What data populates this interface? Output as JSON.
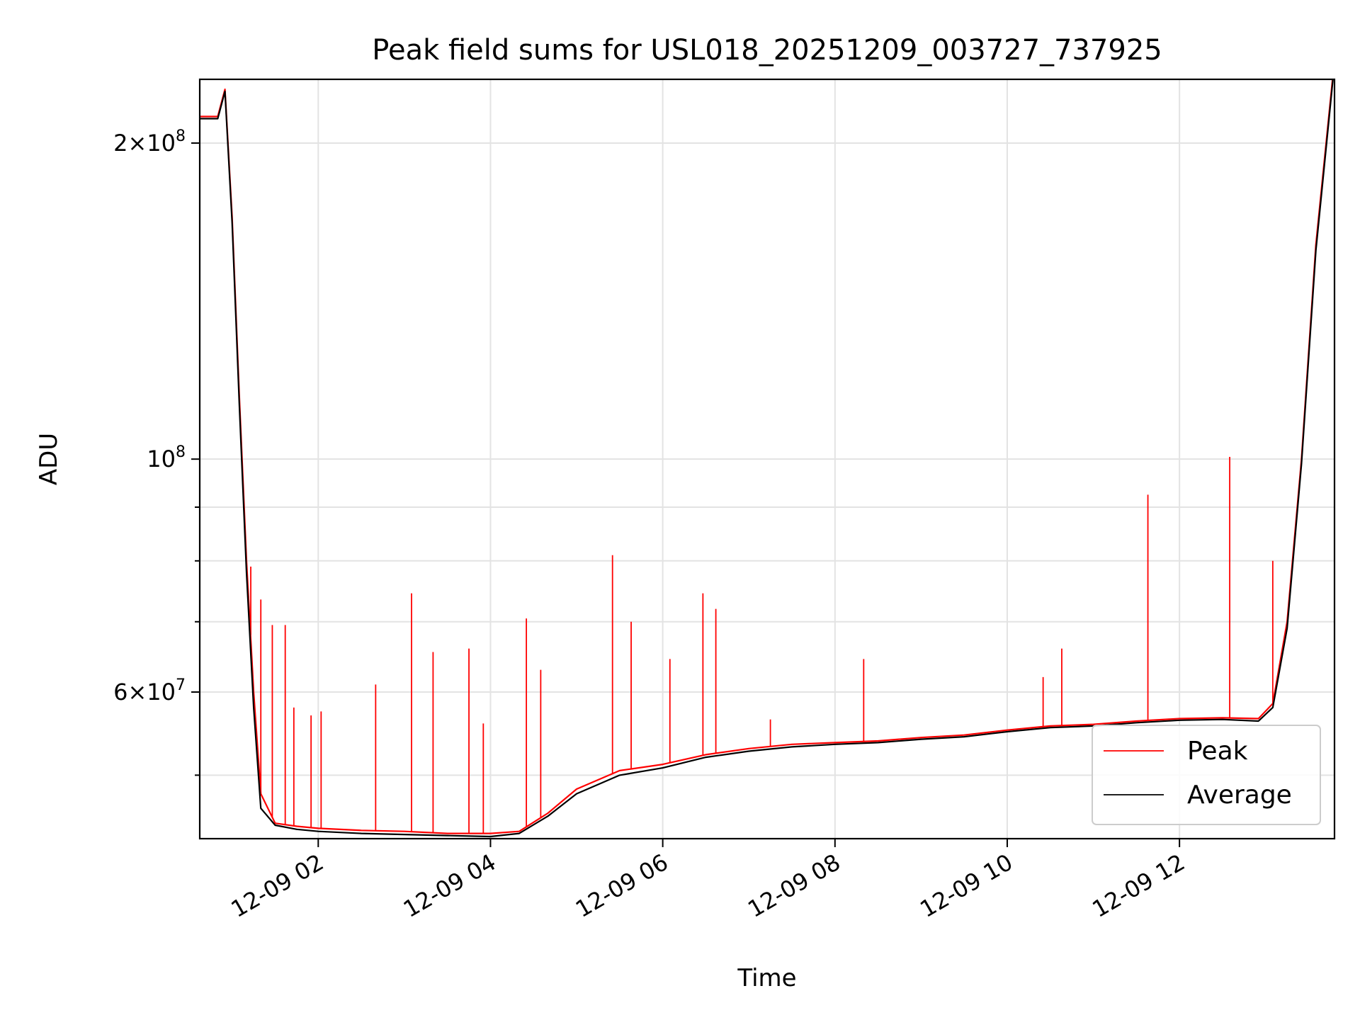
{
  "chart_data": {
    "type": "line",
    "title": "Peak field sums for USL018_20251209_003727_737925",
    "xlabel": "Time",
    "ylabel": "ADU",
    "yscale": "log",
    "grid": true,
    "legend_position": "lower-right",
    "xlim": [
      "2025-12-09T00:37:27",
      "2025-12-09T13:48:00"
    ],
    "ylim": [
      43500000,
      230000000
    ],
    "x_ticks": [
      {
        "t": "2025-12-09T02:00:00",
        "label": "12-09 02"
      },
      {
        "t": "2025-12-09T04:00:00",
        "label": "12-09 04"
      },
      {
        "t": "2025-12-09T06:00:00",
        "label": "12-09 06"
      },
      {
        "t": "2025-12-09T08:00:00",
        "label": "12-09 08"
      },
      {
        "t": "2025-12-09T10:00:00",
        "label": "12-09 10"
      },
      {
        "t": "2025-12-09T12:00:00",
        "label": "12-09 12"
      }
    ],
    "y_major_ticks": [
      {
        "value": 60000000,
        "base": "6",
        "exp": "7"
      },
      {
        "value": 100000000,
        "base": "",
        "exp": "8"
      },
      {
        "value": 200000000,
        "base": "2",
        "exp": "8"
      }
    ],
    "y_minor_ticks": [
      50000000,
      70000000,
      80000000,
      90000000
    ],
    "series": [
      {
        "name": "Peak",
        "color": "#ff0000",
        "x": [
          "2025-12-09T00:37:27",
          "2025-12-09T00:50:00",
          "2025-12-09T00:55:00",
          "2025-12-09T01:00:00",
          "2025-12-09T01:05:00",
          "2025-12-09T01:10:00",
          "2025-12-09T01:15:00",
          "2025-12-09T01:20:00",
          "2025-12-09T01:30:00",
          "2025-12-09T01:45:00",
          "2025-12-09T02:00:00",
          "2025-12-09T02:30:00",
          "2025-12-09T03:00:00",
          "2025-12-09T03:30:00",
          "2025-12-09T04:00:00",
          "2025-12-09T04:20:00",
          "2025-12-09T04:40:00",
          "2025-12-09T05:00:00",
          "2025-12-09T05:30:00",
          "2025-12-09T06:00:00",
          "2025-12-09T06:30:00",
          "2025-12-09T07:00:00",
          "2025-12-09T07:30:00",
          "2025-12-09T08:00:00",
          "2025-12-09T08:30:00",
          "2025-12-09T09:00:00",
          "2025-12-09T09:30:00",
          "2025-12-09T10:00:00",
          "2025-12-09T10:30:00",
          "2025-12-09T11:00:00",
          "2025-12-09T11:30:00",
          "2025-12-09T12:00:00",
          "2025-12-09T12:30:00",
          "2025-12-09T12:55:00",
          "2025-12-09T13:05:00",
          "2025-12-09T13:15:00",
          "2025-12-09T13:25:00",
          "2025-12-09T13:35:00",
          "2025-12-09T13:48:00"
        ],
        "values": [
          212000000,
          212000000,
          225000000,
          170000000,
          115000000,
          80000000,
          60000000,
          48000000,
          45000000,
          44700000,
          44500000,
          44300000,
          44200000,
          44000000,
          44000000,
          44200000,
          46000000,
          48500000,
          50500000,
          51200000,
          52300000,
          53000000,
          53500000,
          53700000,
          53900000,
          54300000,
          54600000,
          55200000,
          55700000,
          55900000,
          56300000,
          56600000,
          56700000,
          56600000,
          58500000,
          70000000,
          100000000,
          160000000,
          240000000
        ],
        "spikes": [
          {
            "t": "2025-12-09T01:13:00",
            "value": 79000000
          },
          {
            "t": "2025-12-09T01:20:00",
            "value": 73500000
          },
          {
            "t": "2025-12-09T01:28:00",
            "value": 69500000
          },
          {
            "t": "2025-12-09T01:37:00",
            "value": 69500000
          },
          {
            "t": "2025-12-09T01:43:00",
            "value": 58000000
          },
          {
            "t": "2025-12-09T01:55:00",
            "value": 57000000
          },
          {
            "t": "2025-12-09T02:02:00",
            "value": 57500000
          },
          {
            "t": "2025-12-09T02:40:00",
            "value": 61000000
          },
          {
            "t": "2025-12-09T03:05:00",
            "value": 74500000
          },
          {
            "t": "2025-12-09T03:20:00",
            "value": 65500000
          },
          {
            "t": "2025-12-09T03:45:00",
            "value": 66000000
          },
          {
            "t": "2025-12-09T03:55:00",
            "value": 56000000
          },
          {
            "t": "2025-12-09T04:25:00",
            "value": 70500000
          },
          {
            "t": "2025-12-09T04:35:00",
            "value": 63000000
          },
          {
            "t": "2025-12-09T05:25:00",
            "value": 81000000
          },
          {
            "t": "2025-12-09T05:38:00",
            "value": 70000000
          },
          {
            "t": "2025-12-09T06:05:00",
            "value": 64500000
          },
          {
            "t": "2025-12-09T06:28:00",
            "value": 74500000
          },
          {
            "t": "2025-12-09T06:37:00",
            "value": 72000000
          },
          {
            "t": "2025-12-09T07:15:00",
            "value": 56500000
          },
          {
            "t": "2025-12-09T08:20:00",
            "value": 64500000
          },
          {
            "t": "2025-12-09T10:25:00",
            "value": 62000000
          },
          {
            "t": "2025-12-09T10:38:00",
            "value": 66000000
          },
          {
            "t": "2025-12-09T11:38:00",
            "value": 92500000
          },
          {
            "t": "2025-12-09T12:35:00",
            "value": 100500000
          },
          {
            "t": "2025-12-09T13:05:00",
            "value": 80000000
          }
        ]
      },
      {
        "name": "Average",
        "color": "#000000",
        "x": [
          "2025-12-09T00:37:27",
          "2025-12-09T00:50:00",
          "2025-12-09T00:55:00",
          "2025-12-09T01:00:00",
          "2025-12-09T01:05:00",
          "2025-12-09T01:10:00",
          "2025-12-09T01:15:00",
          "2025-12-09T01:20:00",
          "2025-12-09T01:30:00",
          "2025-12-09T01:45:00",
          "2025-12-09T02:00:00",
          "2025-12-09T02:30:00",
          "2025-12-09T03:00:00",
          "2025-12-09T03:30:00",
          "2025-12-09T04:00:00",
          "2025-12-09T04:20:00",
          "2025-12-09T04:40:00",
          "2025-12-09T05:00:00",
          "2025-12-09T05:30:00",
          "2025-12-09T06:00:00",
          "2025-12-09T06:30:00",
          "2025-12-09T07:00:00",
          "2025-12-09T07:30:00",
          "2025-12-09T08:00:00",
          "2025-12-09T08:30:00",
          "2025-12-09T09:00:00",
          "2025-12-09T09:30:00",
          "2025-12-09T10:00:00",
          "2025-12-09T10:30:00",
          "2025-12-09T11:00:00",
          "2025-12-09T11:30:00",
          "2025-12-09T12:00:00",
          "2025-12-09T12:30:00",
          "2025-12-09T12:55:00",
          "2025-12-09T13:05:00",
          "2025-12-09T13:15:00",
          "2025-12-09T13:25:00",
          "2025-12-09T13:35:00",
          "2025-12-09T13:48:00"
        ],
        "values": [
          211000000,
          211000000,
          224000000,
          168000000,
          113000000,
          78000000,
          58000000,
          46500000,
          44800000,
          44400000,
          44200000,
          44000000,
          43900000,
          43800000,
          43700000,
          44000000,
          45700000,
          48000000,
          50000000,
          50800000,
          52000000,
          52700000,
          53200000,
          53500000,
          53700000,
          54100000,
          54400000,
          55000000,
          55500000,
          55700000,
          56100000,
          56400000,
          56500000,
          56300000,
          58000000,
          69000000,
          99000000,
          158000000,
          238000000
        ]
      }
    ]
  }
}
